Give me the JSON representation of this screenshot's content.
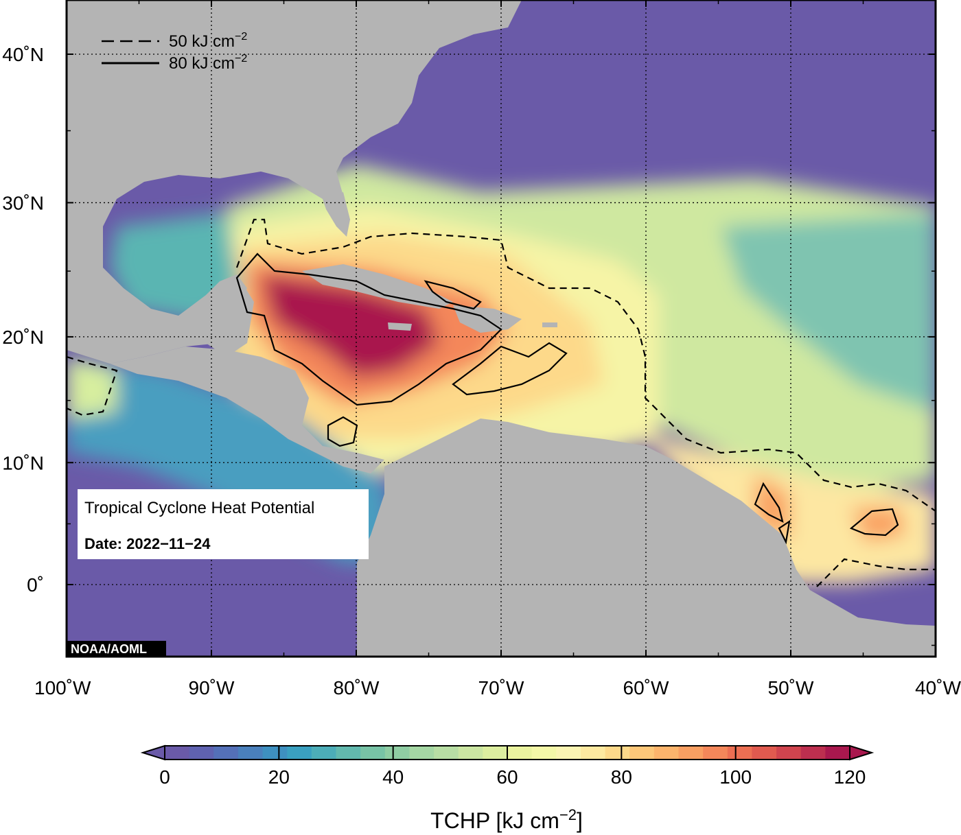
{
  "map": {
    "title": "Tropical Cyclone Heat Potential",
    "date_label": "Date: 2022−11−24",
    "credit": "NOAA/AOML",
    "colors": {
      "land": "#b4b4b4",
      "cold_ocean": "#6a5aa8",
      "frame": "#000000",
      "grid": "#000000"
    },
    "lat_ticks": [
      {
        "value": 40,
        "label": "40˚N"
      },
      {
        "value": 30,
        "label": "30˚N"
      },
      {
        "value": 20,
        "label": "20˚N"
      },
      {
        "value": 10,
        "label": "10˚N"
      },
      {
        "value": 0,
        "label": "0˚"
      }
    ],
    "lon_ticks": [
      {
        "value": -100,
        "label": "100˚W"
      },
      {
        "value": -90,
        "label": "90˚W"
      },
      {
        "value": -80,
        "label": "80˚W"
      },
      {
        "value": -70,
        "label": "70˚W"
      },
      {
        "value": -60,
        "label": "60˚W"
      },
      {
        "value": -50,
        "label": "50˚W"
      },
      {
        "value": -40,
        "label": "40˚W"
      }
    ],
    "legend": [
      {
        "style": "dashed",
        "label": "50 kJ cm",
        "sup": "−2"
      },
      {
        "style": "solid",
        "label": "80 kJ cm",
        "sup": "−2"
      }
    ]
  },
  "colorbar": {
    "title": "TCHP [kJ cm",
    "title_sup": "−2",
    "title_end": "]",
    "min": 0,
    "max": 120,
    "tick_labels": [
      "0",
      "20",
      "40",
      "60",
      "80",
      "100",
      "120"
    ],
    "colors": [
      "#6a5aa8",
      "#5f62b0",
      "#5470b8",
      "#4a80bc",
      "#3e90c0",
      "#3aa0c0",
      "#4cadb8",
      "#62b9ae",
      "#78c3a6",
      "#8fcda3",
      "#a5d7a4",
      "#b8dea4",
      "#cbe6a2",
      "#dcee9f",
      "#eaf39f",
      "#f4f8a8",
      "#fbf5b3",
      "#fde9a0",
      "#fdd98a",
      "#fdc779",
      "#fcb46c",
      "#f99f62",
      "#f4875a",
      "#ec6f53",
      "#e05a4f",
      "#d0444e",
      "#bd2f4f",
      "#a9184e"
    ]
  }
}
